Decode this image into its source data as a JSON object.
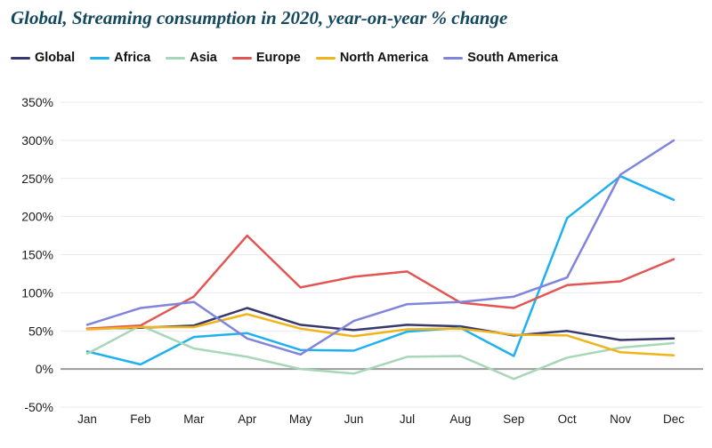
{
  "title": "Global, Streaming consumption in 2020, year-on-year % change",
  "colors": {
    "title_text": "#14485f",
    "axis_text": "#1c1c1c",
    "gridline": "#e9e9f1",
    "zero_line": "#9b9b9b",
    "background": "#ffffff"
  },
  "chart_data": {
    "type": "line",
    "title": "Global, Streaming consumption in 2020, year-on-year % change",
    "xlabel": "",
    "ylabel": "year-on-year % change",
    "x": [
      "Jan",
      "Feb",
      "Mar",
      "Apr",
      "May",
      "Jun",
      "Jul",
      "Aug",
      "Sep",
      "Oct",
      "Nov",
      "Dec"
    ],
    "yticks": [
      350,
      300,
      250,
      200,
      150,
      100,
      50,
      0,
      -50
    ],
    "ytick_labels": [
      "350%",
      "300%",
      "250%",
      "200%",
      "150%",
      "100%",
      "50%",
      "0%",
      "-50%"
    ],
    "ylim": [
      -50,
      350
    ],
    "grid": true,
    "legend_position": "top",
    "series": [
      {
        "name": "Global",
        "color": "#38386e",
        "values": [
          53,
          54,
          57,
          80,
          58,
          51,
          58,
          56,
          44,
          50,
          38,
          40
        ]
      },
      {
        "name": "Africa",
        "color": "#1fb0ef",
        "values": [
          23,
          6,
          42,
          47,
          25,
          24,
          49,
          54,
          17,
          198,
          253,
          222
        ]
      },
      {
        "name": "Asia",
        "color": "#a7d7b6",
        "values": [
          20,
          57,
          27,
          16,
          0,
          -6,
          16,
          17,
          -13,
          15,
          28,
          34
        ]
      },
      {
        "name": "Europe",
        "color": "#e25553",
        "values": [
          53,
          57,
          95,
          175,
          107,
          121,
          128,
          87,
          80,
          110,
          115,
          144
        ]
      },
      {
        "name": "North America",
        "color": "#f0b31a",
        "values": [
          52,
          55,
          55,
          72,
          53,
          43,
          52,
          53,
          45,
          44,
          22,
          18
        ]
      },
      {
        "name": "South America",
        "color": "#8084dc",
        "values": [
          58,
          80,
          88,
          40,
          19,
          63,
          85,
          88,
          95,
          120,
          255,
          300
        ]
      }
    ]
  }
}
